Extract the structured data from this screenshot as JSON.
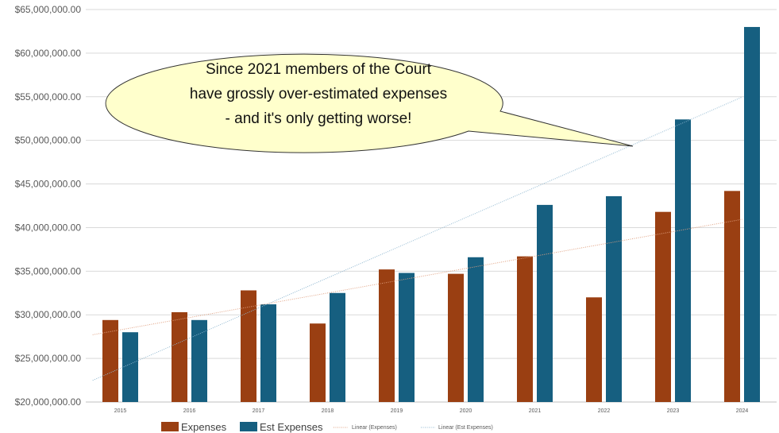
{
  "chart_data": {
    "type": "bar",
    "title": "",
    "xlabel": "",
    "ylabel": "",
    "ylim": [
      20000000,
      65000000
    ],
    "ytick_step": 5000000,
    "grid": true,
    "categories": [
      "2015",
      "2016",
      "2017",
      "2018",
      "2019",
      "2020",
      "2021",
      "2022",
      "2023",
      "2024"
    ],
    "series": [
      {
        "name": "Expenses",
        "color": "#9A3F12",
        "values": [
          29400000,
          30300000,
          32800000,
          29000000,
          35200000,
          34700000,
          36700000,
          32000000,
          41800000,
          44200000
        ]
      },
      {
        "name": "Est Expenses",
        "color": "#165F80",
        "values": [
          28000000,
          29400000,
          31200000,
          32500000,
          34800000,
          36600000,
          42600000,
          43600000,
          52400000,
          63000000
        ]
      }
    ],
    "trendlines": [
      {
        "name": "Linear (Expenses)",
        "series": "Expenses",
        "color": "#E0A080"
      },
      {
        "name": "Linear (Est Expenses)",
        "series": "Est Expenses",
        "color": "#8FB7D0"
      }
    ],
    "legend_position": "bottom",
    "annotation": {
      "lines": [
        "Since 2021 members of the Court",
        "have grossly over-estimated expenses",
        "- and it's only getting worse!"
      ],
      "fill": "#FFFFCC"
    }
  }
}
